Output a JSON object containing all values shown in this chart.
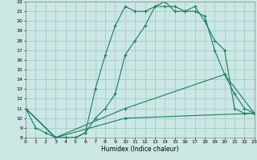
{
  "xlabel": "Humidex (Indice chaleur)",
  "xlim": [
    0,
    23
  ],
  "ylim": [
    8,
    22
  ],
  "xticks": [
    0,
    1,
    2,
    3,
    4,
    5,
    6,
    7,
    8,
    9,
    10,
    11,
    12,
    13,
    14,
    15,
    16,
    17,
    18,
    19,
    20,
    21,
    22,
    23
  ],
  "yticks": [
    8,
    9,
    10,
    11,
    12,
    13,
    14,
    15,
    16,
    17,
    18,
    19,
    20,
    21,
    22
  ],
  "background_color": "#cce8e4",
  "grid_color": "#aacfcb",
  "line_color": "#1a7a6e",
  "series": [
    {
      "x": [
        0,
        1,
        2,
        3,
        4,
        5,
        6,
        7,
        8,
        9,
        10,
        11,
        12,
        13,
        14,
        15,
        16,
        17,
        18,
        19,
        20,
        21,
        22,
        23
      ],
      "y": [
        11,
        9,
        8.5,
        8,
        8,
        8,
        8.5,
        10,
        11,
        12.5,
        16.5,
        18,
        19.5,
        21.5,
        21.5,
        21.5,
        21,
        21.5,
        20,
        18,
        17,
        11,
        10.5,
        10.5
      ]
    },
    {
      "x": [
        0,
        3,
        4,
        5,
        6,
        7,
        8,
        9,
        10,
        11,
        12,
        13,
        14,
        15,
        16,
        17,
        18,
        19,
        20,
        21,
        22,
        23
      ],
      "y": [
        11,
        8,
        8,
        8,
        8.5,
        13,
        16.5,
        19.5,
        21.5,
        21,
        21,
        21.5,
        22,
        21,
        21,
        21,
        20.5,
        17,
        14.5,
        12.5,
        11,
        10.5
      ]
    },
    {
      "x": [
        0,
        3,
        10,
        20,
        23
      ],
      "y": [
        11,
        8,
        11,
        14.5,
        10.5
      ]
    },
    {
      "x": [
        0,
        3,
        10,
        23
      ],
      "y": [
        11,
        8,
        10,
        10.5
      ]
    }
  ]
}
